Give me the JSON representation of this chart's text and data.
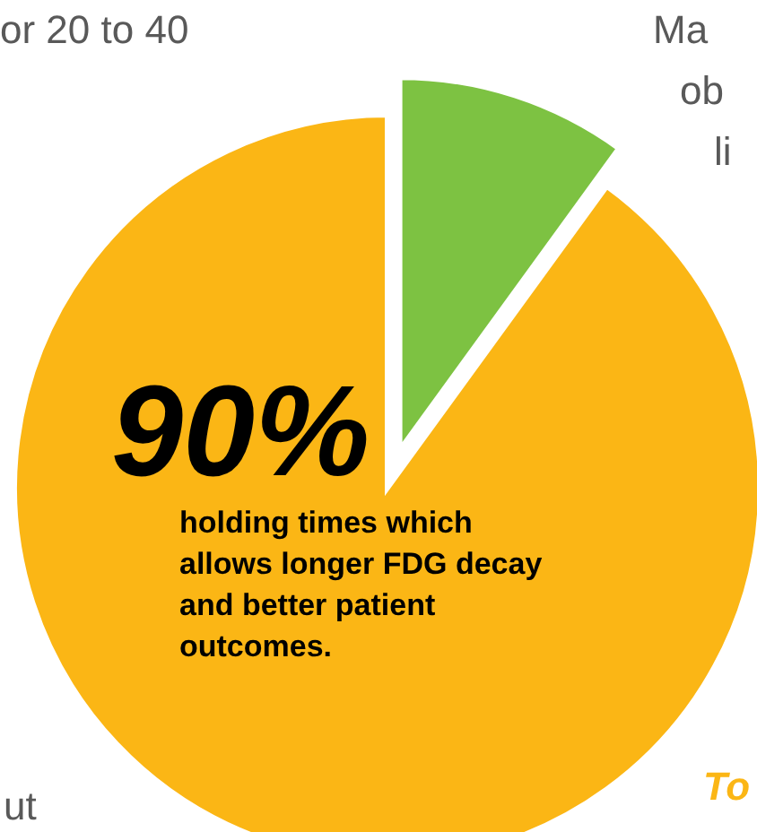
{
  "chart_data": {
    "type": "pie",
    "categories": [
      null,
      null
    ],
    "values": [
      10,
      90
    ],
    "colors": [
      "#7dc242",
      "#fbb615"
    ],
    "value_labels": [
      null,
      "90%"
    ],
    "annotations": [
      "holding times which allows longer FDG decay and better patient outcomes.",
      "or 20 to 40",
      "Ma",
      "ob",
      "li",
      "ut",
      "To"
    ]
  }
}
